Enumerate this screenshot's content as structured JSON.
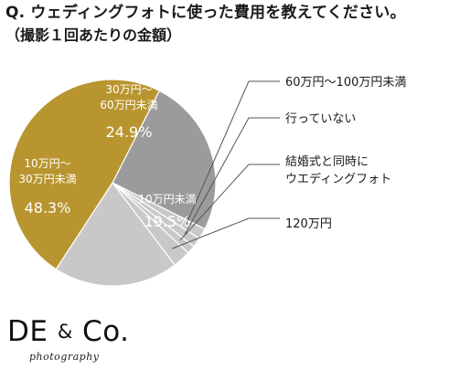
{
  "header": {
    "question": "Q. ウェディングフォトに使った費用を教えてください。",
    "subtitle": "（撮影１回あたりの金額）"
  },
  "logo": {
    "brand_prefix": "DE ",
    "brand_amp": "&",
    "brand_suffix": " Co.",
    "tagline": "photography"
  },
  "colors": {
    "gold": "#B8952F",
    "dark_gray": "#9B9B9B",
    "light_gray": "#C8C8C8",
    "white": "#FFFFFF",
    "leader": "#555555"
  },
  "chart_data": {
    "type": "pie",
    "title": "Q. ウェディングフォトに使った費用を教えてください。",
    "subtitle": "（撮影１回あたりの金額）",
    "unit": "%",
    "slices": [
      {
        "label": "30万円〜60万円未満",
        "label_lines": [
          "30万円〜",
          "60万円未満"
        ],
        "value": 24.9,
        "value_text": "24.9%",
        "color": "#9B9B9B",
        "label_inside": true
      },
      {
        "label": "60万円〜100万円未満",
        "label_lines": [
          "60万円〜100万円未満"
        ],
        "value": 1.7,
        "value_text": "",
        "color": "#C8C8C8",
        "label_inside": false
      },
      {
        "label": "行っていない",
        "label_lines": [
          "行っていない"
        ],
        "value": 1.5,
        "value_text": "",
        "color": "#C8C8C8",
        "label_inside": false
      },
      {
        "label": "結婚式と同時にウエディングフォト",
        "label_lines": [
          "結婚式と同時に",
          "ウエディングフォト"
        ],
        "value": 1.3,
        "value_text": "",
        "color": "#C8C8C8",
        "label_inside": false
      },
      {
        "label": "120万円",
        "label_lines": [
          "120万円"
        ],
        "value": 2.8,
        "value_text": "",
        "color": "#C8C8C8",
        "label_inside": false
      },
      {
        "label": "10万円未満",
        "label_lines": [
          "10万円未満"
        ],
        "value": 19.5,
        "value_text": "19.5%",
        "color": "#C8C8C8",
        "label_inside": true
      },
      {
        "label": "10万円〜30万円未満",
        "label_lines": [
          "10万円〜",
          "30万円未満"
        ],
        "value": 48.3,
        "value_text": "48.3%",
        "color": "#B8952F",
        "label_inside": true
      }
    ]
  }
}
